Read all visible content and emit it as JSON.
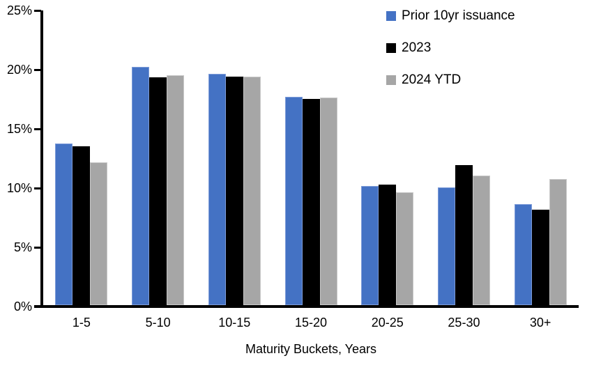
{
  "chart_data": {
    "type": "bar",
    "title": "",
    "xlabel": "Maturity Buckets, Years",
    "ylabel": "",
    "unit": "%",
    "categories": [
      "1-5",
      "5-10",
      "10-15",
      "15-20",
      "20-25",
      "25-30",
      "30+"
    ],
    "series": [
      {
        "name": "Prior 10yr issuance",
        "color": "#4472C4",
        "edge_color": "#7E9CD9",
        "values": [
          13.7,
          20.2,
          19.6,
          17.7,
          10.1,
          10.0,
          8.6
        ]
      },
      {
        "name": "2023",
        "color": "#000000",
        "edge_color": "#000000",
        "values": [
          13.5,
          19.3,
          19.4,
          17.5,
          10.2,
          11.9,
          8.1
        ]
      },
      {
        "name": "2024 YTD",
        "color": "#A6A6A6",
        "edge_color": "#C9C9C9",
        "values": [
          12.1,
          19.5,
          19.4,
          17.6,
          9.6,
          11.0,
          10.7
        ]
      }
    ],
    "ylim": [
      0,
      25
    ],
    "yticks": [
      0,
      5,
      10,
      15,
      20,
      25
    ],
    "ytick_labels": [
      "0%",
      "5%",
      "10%",
      "15%",
      "20%",
      "25%"
    ],
    "grid": false,
    "legend_position": "top-right",
    "axis_color": "#000000",
    "background_color": "#FFFFFF"
  }
}
